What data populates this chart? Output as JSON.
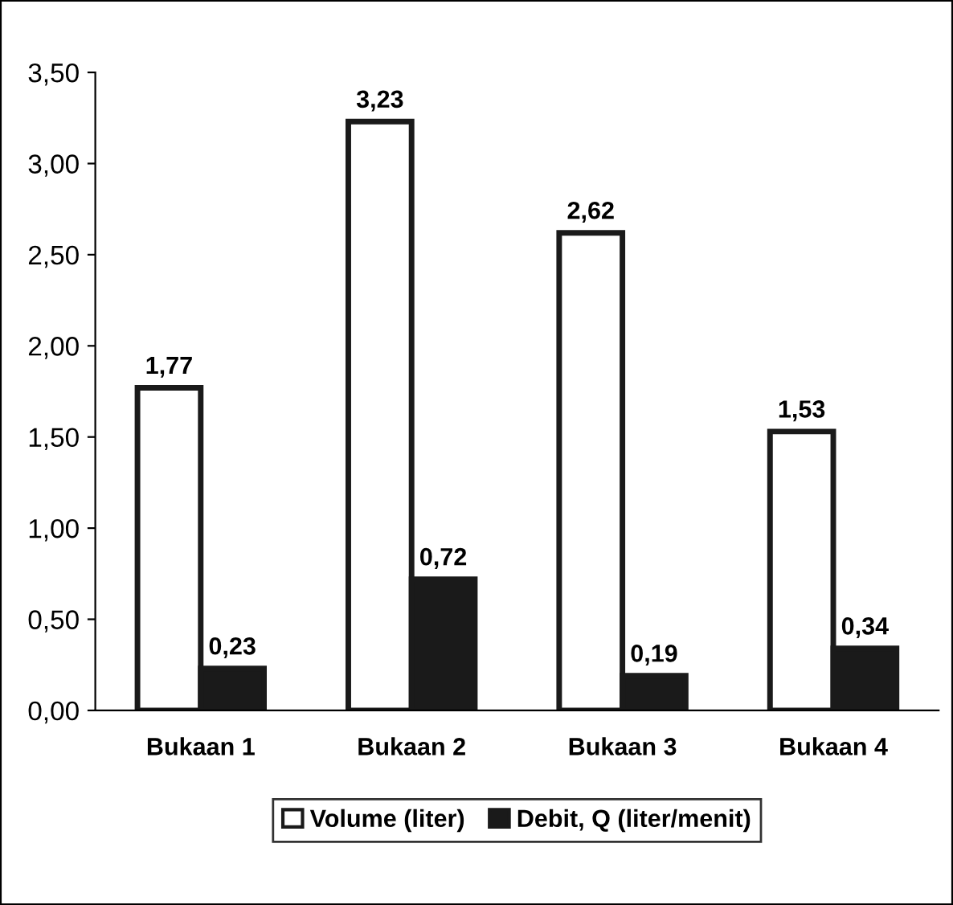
{
  "chart_data": {
    "type": "bar",
    "categories": [
      "Bukaan 1",
      "Bukaan 2",
      "Bukaan 3",
      "Bukaan 4"
    ],
    "series": [
      {
        "name": "Volume (liter)",
        "color": "#ffffff",
        "values": [
          1.77,
          3.23,
          2.62,
          1.53
        ],
        "value_labels": [
          "1,77",
          "3,23",
          "2,62",
          "1,53"
        ]
      },
      {
        "name": "Debit, Q (liter/menit)",
        "color": "#1a1a1a",
        "values": [
          0.23,
          0.72,
          0.19,
          0.34
        ],
        "value_labels": [
          "0,23",
          "0,72",
          "0,19",
          "0,34"
        ]
      }
    ],
    "ylim": [
      0,
      3.5
    ],
    "yticks": [
      {
        "value": 0,
        "label": "0,00"
      },
      {
        "value": 0.5,
        "label": "0,50"
      },
      {
        "value": 1,
        "label": "1,00"
      },
      {
        "value": 1.5,
        "label": "1,50"
      },
      {
        "value": 2,
        "label": "2,00"
      },
      {
        "value": 2.5,
        "label": "2,50"
      },
      {
        "value": 3,
        "label": "3,00"
      },
      {
        "value": 3.5,
        "label": "3,50"
      }
    ],
    "grid": false,
    "legend": "bottom"
  }
}
